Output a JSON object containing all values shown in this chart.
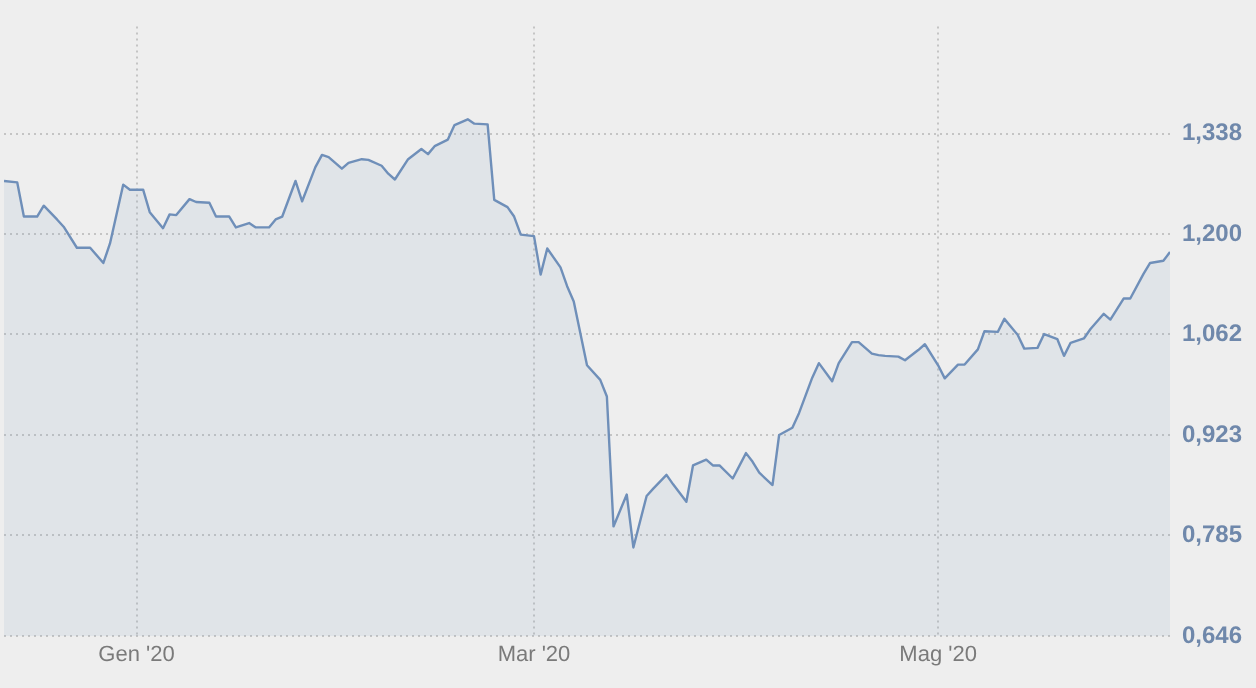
{
  "chart_data": {
    "type": "area",
    "x": [
      "2019-12-12",
      "2019-12-14",
      "2019-12-15",
      "2019-12-17",
      "2019-12-18",
      "2019-12-20",
      "2019-12-21",
      "2019-12-23",
      "2019-12-24",
      "2019-12-25",
      "2019-12-27",
      "2019-12-28",
      "2019-12-30",
      "2019-12-31",
      "2020-01-02",
      "2020-01-03",
      "2020-01-05",
      "2020-01-06",
      "2020-01-07",
      "2020-01-09",
      "2020-01-10",
      "2020-01-12",
      "2020-01-13",
      "2020-01-15",
      "2020-01-16",
      "2020-01-18",
      "2020-01-19",
      "2020-01-21",
      "2020-01-22",
      "2020-01-23",
      "2020-01-25",
      "2020-01-26",
      "2020-01-28",
      "2020-01-29",
      "2020-01-30",
      "2020-02-01",
      "2020-02-02",
      "2020-02-04",
      "2020-02-05",
      "2020-02-07",
      "2020-02-08",
      "2020-02-09",
      "2020-02-11",
      "2020-02-13",
      "2020-02-14",
      "2020-02-15",
      "2020-02-17",
      "2020-02-18",
      "2020-02-20",
      "2020-02-21",
      "2020-02-23",
      "2020-02-24",
      "2020-02-26",
      "2020-02-27",
      "2020-02-28",
      "2020-03-01",
      "2020-03-02",
      "2020-03-03",
      "2020-03-05",
      "2020-03-06",
      "2020-03-07",
      "2020-03-09",
      "2020-03-11",
      "2020-03-12",
      "2020-03-13",
      "2020-03-15",
      "2020-03-16",
      "2020-03-18",
      "2020-03-19",
      "2020-03-21",
      "2020-03-22",
      "2020-03-24",
      "2020-03-25",
      "2020-03-27",
      "2020-03-28",
      "2020-03-29",
      "2020-03-31",
      "2020-04-02",
      "2020-04-03",
      "2020-04-04",
      "2020-04-06",
      "2020-04-07",
      "2020-04-09",
      "2020-04-10",
      "2020-04-12",
      "2020-04-13",
      "2020-04-15",
      "2020-04-16",
      "2020-04-18",
      "2020-04-19",
      "2020-04-21",
      "2020-04-22",
      "2020-04-23",
      "2020-04-25",
      "2020-04-26",
      "2020-04-28",
      "2020-04-29",
      "2020-05-01",
      "2020-05-02",
      "2020-05-04",
      "2020-05-05",
      "2020-05-07",
      "2020-05-08",
      "2020-05-10",
      "2020-05-11",
      "2020-05-13",
      "2020-05-14",
      "2020-05-16",
      "2020-05-17",
      "2020-05-19",
      "2020-05-20",
      "2020-05-21",
      "2020-05-23",
      "2020-05-24",
      "2020-05-26",
      "2020-05-27",
      "2020-05-29",
      "2020-05-30",
      "2020-06-01",
      "2020-06-02",
      "2020-06-04",
      "2020-06-05"
    ],
    "series": [
      {
        "color": "#6f8fb9",
        "values": [
          1.273,
          1.271,
          1.224,
          1.224,
          1.239,
          1.22,
          1.21,
          1.181,
          1.181,
          1.181,
          1.16,
          1.187,
          1.268,
          1.261,
          1.261,
          1.23,
          1.208,
          1.227,
          1.226,
          1.248,
          1.244,
          1.243,
          1.224,
          1.224,
          1.209,
          1.215,
          1.209,
          1.209,
          1.22,
          1.224,
          1.273,
          1.245,
          1.292,
          1.309,
          1.306,
          1.29,
          1.298,
          1.303,
          1.302,
          1.294,
          1.283,
          1.275,
          1.303,
          1.317,
          1.31,
          1.321,
          1.33,
          1.35,
          1.358,
          1.352,
          1.351,
          1.247,
          1.237,
          1.224,
          1.199,
          1.197,
          1.144,
          1.18,
          1.154,
          1.128,
          1.107,
          1.019,
          0.999,
          0.976,
          0.797,
          0.841,
          0.768,
          0.839,
          0.849,
          0.868,
          0.855,
          0.831,
          0.881,
          0.889,
          0.881,
          0.881,
          0.863,
          0.898,
          0.886,
          0.871,
          0.854,
          0.923,
          0.933,
          0.953,
          1.002,
          1.022,
          0.997,
          1.022,
          1.051,
          1.051,
          1.035,
          1.033,
          1.032,
          1.031,
          1.026,
          1.04,
          1.048,
          1.019,
          1.001,
          1.02,
          1.02,
          1.041,
          1.066,
          1.065,
          1.083,
          1.061,
          1.042,
          1.043,
          1.062,
          1.055,
          1.032,
          1.05,
          1.056,
          1.069,
          1.09,
          1.082,
          1.111,
          1.111,
          1.145,
          1.16,
          1.163,
          1.175
        ]
      }
    ],
    "xlim": [
      "2019-12-12",
      "2020-06-05"
    ],
    "xticks": [
      {
        "value": "2020-01-01",
        "label": "Gen '20"
      },
      {
        "value": "2020-03-01",
        "label": "Mar '20"
      },
      {
        "value": "2020-05-01",
        "label": "Mag '20"
      }
    ],
    "ylim": [
      0.646,
      1.486
    ],
    "yticks": [
      {
        "value": 0.646,
        "label": "0,646"
      },
      {
        "value": 0.785,
        "label": "0,785"
      },
      {
        "value": 0.923,
        "label": "0,923"
      },
      {
        "value": 1.062,
        "label": "1,062"
      },
      {
        "value": 1.2,
        "label": "1,200"
      },
      {
        "value": 1.338,
        "label": "1,338"
      }
    ],
    "grid": true
  }
}
